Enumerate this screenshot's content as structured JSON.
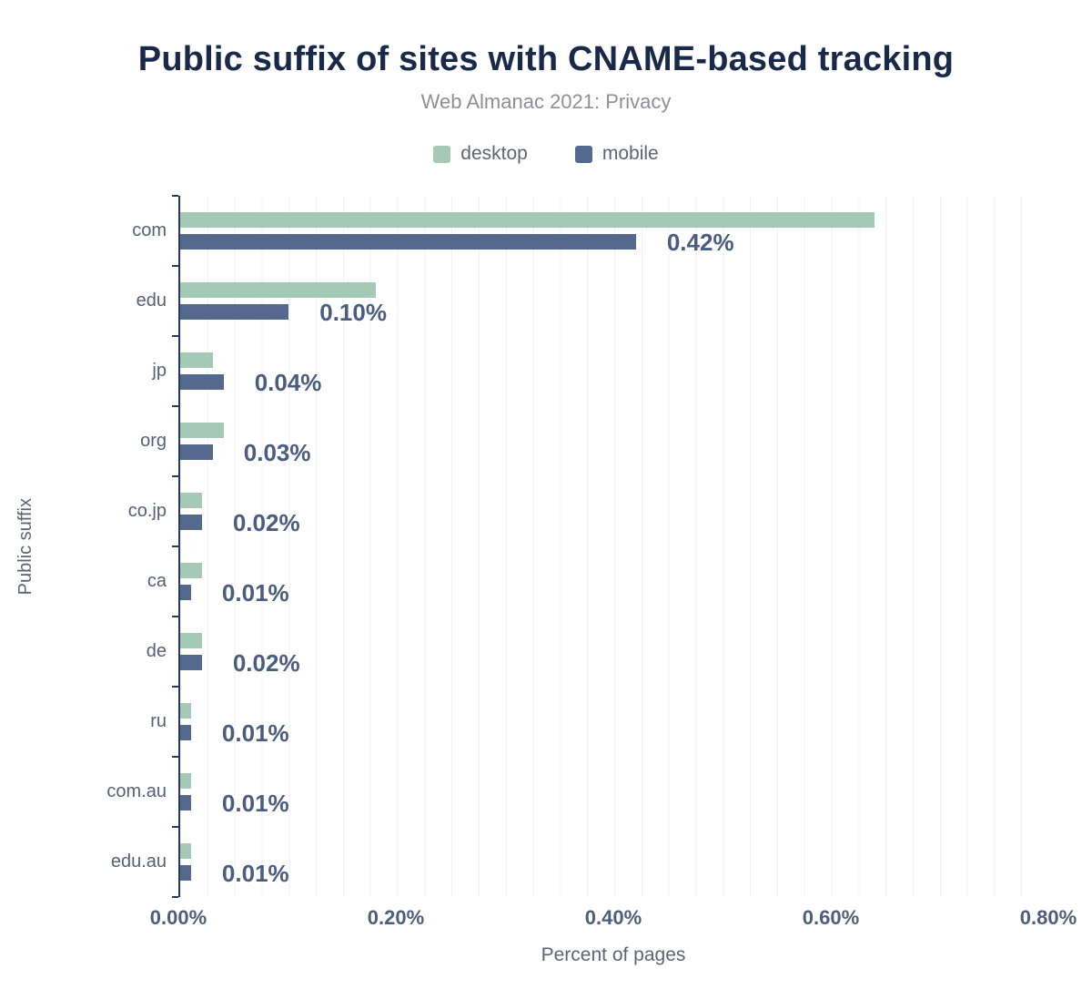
{
  "figure": {
    "title": "Public suffix of sites with CNAME-based tracking",
    "subtitle": "Web Almanac 2021: Privacy"
  },
  "legend": {
    "items": [
      {
        "label": "desktop",
        "color": "#a4cab5"
      },
      {
        "label": "mobile",
        "color": "#55688d"
      }
    ]
  },
  "colors": {
    "title": "#19294a",
    "subtitle": "#8e8e9c",
    "axis": "#263a59",
    "label": "#55617a",
    "annotation": "#4a5c80",
    "grid": "#eff1f5",
    "ticklabel": "#4e5d7d"
  },
  "chart_data": {
    "type": "bar",
    "orientation": "horizontal",
    "title": "Public suffix of sites with CNAME-based tracking",
    "subtitle": "Web Almanac 2021: Privacy",
    "categories": [
      "com",
      "edu",
      "jp",
      "org",
      "co.jp",
      "ca",
      "de",
      "ru",
      "com.au",
      "edu.au"
    ],
    "series": [
      {
        "name": "desktop",
        "color": "#a4cab5",
        "values": [
          0.64,
          0.18,
          0.03,
          0.04,
          0.02,
          0.02,
          0.02,
          0.01,
          0.01,
          0.01
        ]
      },
      {
        "name": "mobile",
        "color": "#55688d",
        "values": [
          0.42,
          0.1,
          0.04,
          0.03,
          0.02,
          0.01,
          0.02,
          0.01,
          0.01,
          0.01
        ]
      }
    ],
    "annotations": [
      "0.42%",
      "0.10%",
      "0.04%",
      "0.03%",
      "0.02%",
      "0.01%",
      "0.02%",
      "0.01%",
      "0.01%",
      "0.01%"
    ],
    "xlabel": "Percent of pages",
    "ylabel": "Public suffix",
    "xlim": [
      0,
      0.8
    ],
    "x_ticks": [
      "0.00%",
      "0.20%",
      "0.40%",
      "0.60%",
      "0.80%"
    ],
    "grid": "vertical-minor",
    "legend_position": "top",
    "value_unit": "percent"
  }
}
